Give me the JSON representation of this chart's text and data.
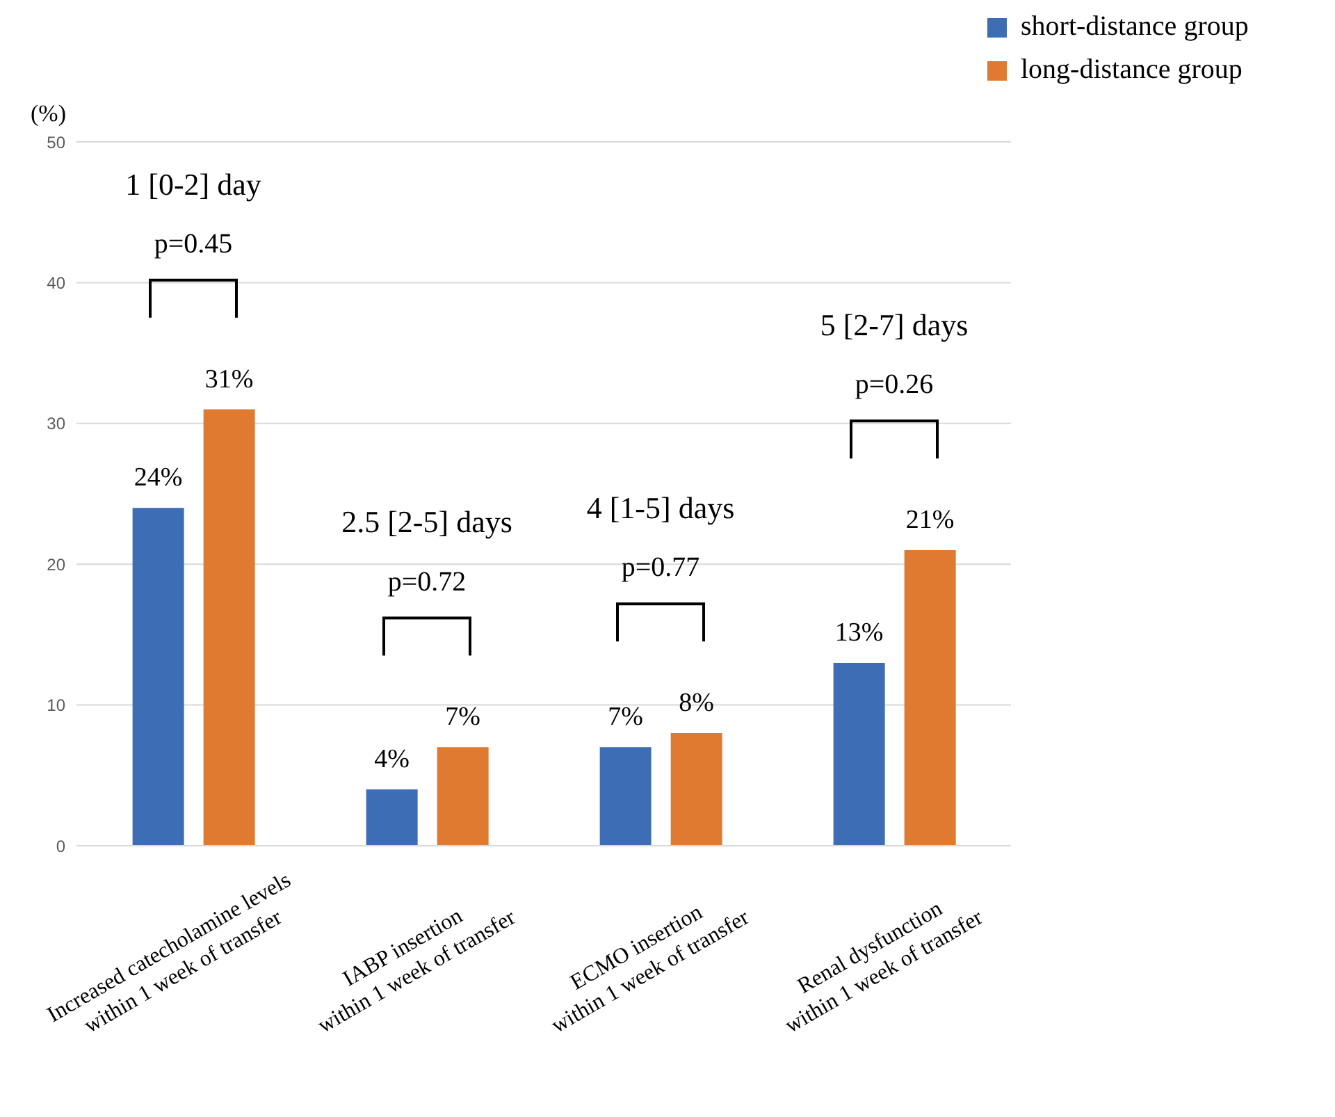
{
  "chart_data": {
    "type": "bar",
    "ylabel": "(%)",
    "categories": [
      "Increased catecholamine levels\nwithin 1 week of transfer",
      "IABP insertion\nwithin 1 week of transfer",
      "ECMO insertion\nwithin 1 week of transfer",
      "Renal dysfunction\nwithin 1 week of transfer"
    ],
    "series": [
      {
        "name": "short-distance group",
        "color": "#3d6db5",
        "values": [
          24,
          4,
          7,
          13
        ],
        "value_labels": [
          "24%",
          "4%",
          "7%",
          "13%"
        ]
      },
      {
        "name": "long-distance group",
        "color": "#e07a30",
        "values": [
          31,
          7,
          8,
          21
        ],
        "value_labels": [
          "31%",
          "7%",
          "8%",
          "21%"
        ]
      }
    ],
    "ylim": [
      0,
      50
    ],
    "yticks": [
      0,
      10,
      20,
      30,
      40,
      50
    ],
    "grid": "y",
    "legend": "top right",
    "annotations": [
      "1 [0-2] day",
      "p=0.45",
      "2.5 [2-5] days",
      "p=0.72",
      "4 [1-5] days",
      "p=0.77",
      "5 [2-7] days",
      "p=0.26"
    ]
  }
}
